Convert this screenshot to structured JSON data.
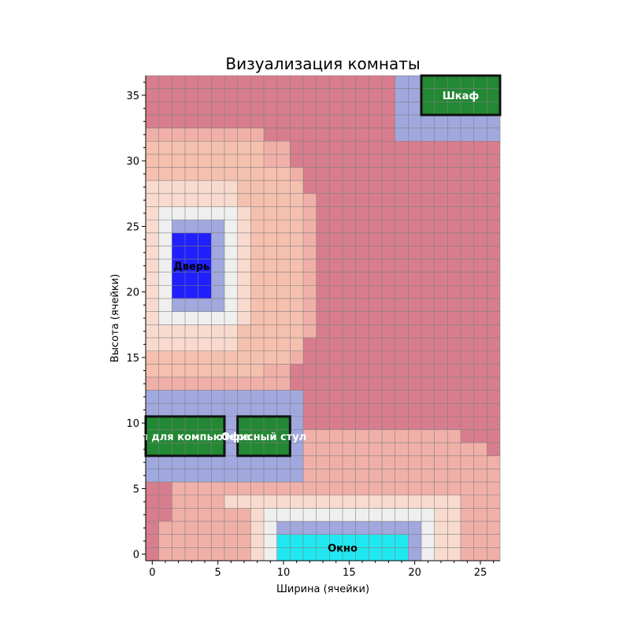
{
  "chart_data": {
    "type": "heatmap",
    "title": "Визуализация комнаты",
    "xlabel": "Ширина (ячейки)",
    "ylabel": "Высота (ячейки)",
    "xlim": [
      -0.5,
      26.5
    ],
    "ylim": [
      -0.5,
      36.5
    ],
    "xticks": [
      0,
      5,
      10,
      15,
      20,
      25
    ],
    "yticks": [
      0,
      5,
      10,
      15,
      20,
      25,
      30,
      35
    ],
    "grid": true,
    "zone_colors": {
      "deep": "#d87d8d",
      "mid": "#f0b0a8",
      "light": "#f5c0ae",
      "pale": "#f9dace",
      "white": "#efefef",
      "buffer": "#a0a8de"
    },
    "zones": [
      {
        "color": "deep",
        "x": [
          0,
          26
        ],
        "y": [
          0,
          36
        ]
      },
      {
        "color": "mid",
        "x": [
          0,
          8
        ],
        "y": [
          13,
          32
        ]
      },
      {
        "color": "mid",
        "x": [
          9,
          10
        ],
        "y": [
          13,
          31
        ]
      },
      {
        "color": "mid",
        "x": [
          11,
          11
        ],
        "y": [
          15,
          29
        ]
      },
      {
        "color": "mid",
        "x": [
          12,
          12
        ],
        "y": [
          17,
          27
        ]
      },
      {
        "color": "light",
        "x": [
          0,
          8
        ],
        "y": [
          14,
          31
        ]
      },
      {
        "color": "light",
        "x": [
          9,
          10
        ],
        "y": [
          15,
          29
        ]
      },
      {
        "color": "light",
        "x": [
          11,
          11
        ],
        "y": [
          16,
          28
        ]
      },
      {
        "color": "pale",
        "x": [
          0,
          6
        ],
        "y": [
          16,
          28
        ]
      },
      {
        "color": "pale",
        "x": [
          7,
          7
        ],
        "y": [
          18,
          26
        ]
      },
      {
        "color": "white",
        "x": [
          1,
          6
        ],
        "y": [
          18,
          26
        ]
      },
      {
        "color": "buffer",
        "x": [
          2,
          5
        ],
        "y": [
          19,
          25
        ]
      },
      {
        "color": "mid",
        "x": [
          12,
          26
        ],
        "y": [
          0,
          9
        ]
      },
      {
        "color": "mid",
        "x": [
          2,
          11
        ],
        "y": [
          0,
          5
        ]
      },
      {
        "color": "mid",
        "x": [
          1,
          1
        ],
        "y": [
          0,
          2
        ]
      },
      {
        "color": "deep",
        "x": [
          24,
          26
        ],
        "y": [
          9,
          9
        ]
      },
      {
        "color": "deep",
        "x": [
          26,
          26
        ],
        "y": [
          8,
          8
        ]
      },
      {
        "color": "pale",
        "x": [
          8,
          23
        ],
        "y": [
          0,
          4
        ]
      },
      {
        "color": "pale",
        "x": [
          6,
          22
        ],
        "y": [
          4,
          4
        ]
      },
      {
        "color": "white",
        "x": [
          9,
          21
        ],
        "y": [
          0,
          3
        ]
      },
      {
        "color": "buffer",
        "x": [
          10,
          20
        ],
        "y": [
          0,
          2
        ]
      },
      {
        "color": "buffer",
        "x": [
          0,
          11
        ],
        "y": [
          6,
          12
        ]
      },
      {
        "color": "buffer",
        "x": [
          19,
          26
        ],
        "y": [
          32,
          36
        ]
      }
    ],
    "objects": [
      {
        "label": "Дверь",
        "x": [
          2,
          4
        ],
        "y": [
          20,
          24
        ],
        "fill": "#2020ff",
        "border": false,
        "text_color": "#000000"
      },
      {
        "label": "Окно",
        "x": [
          10,
          19
        ],
        "y": [
          0,
          1
        ],
        "fill": "#20e8f0",
        "border": false,
        "text_color": "#000000"
      },
      {
        "label": "Стол для компьютера",
        "x": [
          0,
          5
        ],
        "y": [
          8,
          10
        ],
        "fill": "#228833",
        "border": true,
        "text_color": "#ffffff"
      },
      {
        "label": "Офисный стул",
        "x": [
          7,
          10
        ],
        "y": [
          8,
          10
        ],
        "fill": "#228833",
        "border": true,
        "text_color": "#ffffff"
      },
      {
        "label": "Шкаф",
        "x": [
          21,
          26
        ],
        "y": [
          34,
          36
        ],
        "fill": "#228833",
        "border": true,
        "text_color": "#ffffff"
      }
    ]
  }
}
